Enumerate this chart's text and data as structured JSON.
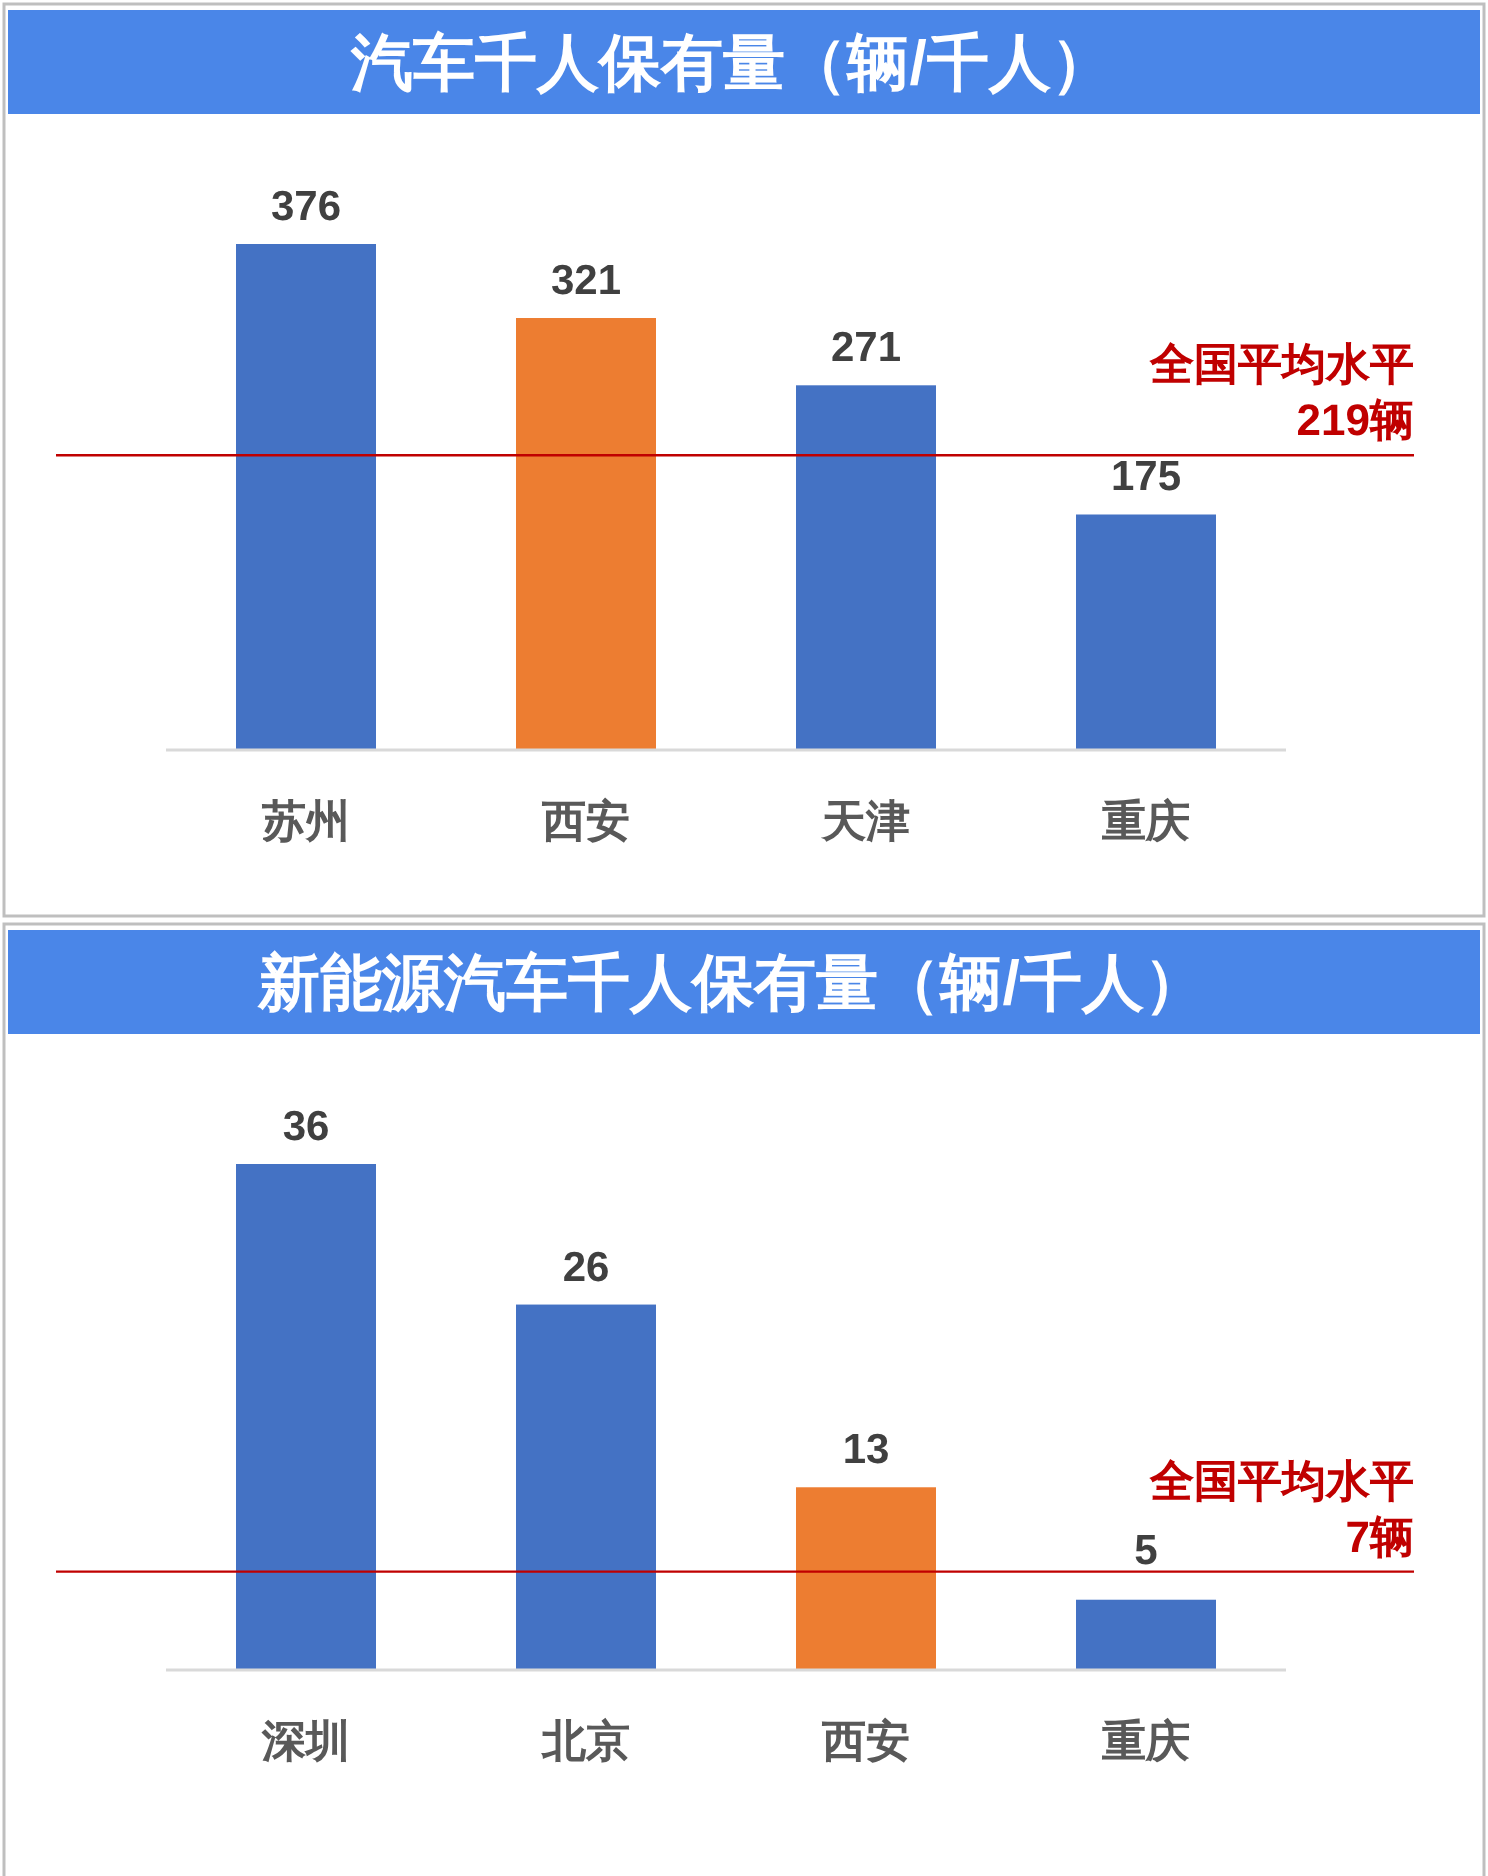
{
  "chart_data": [
    {
      "type": "bar",
      "title": "汽车千人保有量（辆/千人）",
      "categories": [
        "苏州",
        "西安",
        "天津",
        "重庆"
      ],
      "values": [
        376,
        321,
        271,
        175
      ],
      "colors": [
        "#4472c4",
        "#ed7d31",
        "#4472c4",
        "#4472c4"
      ],
      "data_labels": true,
      "ref_lines": [
        {
          "axis": "y",
          "value": 219,
          "label": "全国平均水平\n219辆",
          "color": "#c00000"
        }
      ]
    },
    {
      "type": "bar",
      "title": "新能源汽车千人保有量（辆/千人）",
      "categories": [
        "深圳",
        "北京",
        "西安",
        "重庆"
      ],
      "values": [
        36,
        26,
        13,
        5
      ],
      "colors": [
        "#4472c4",
        "#4472c4",
        "#ed7d31",
        "#4472c4"
      ],
      "data_labels": true,
      "ref_lines": [
        {
          "axis": "y",
          "value": 7,
          "label": "全国平均水平\n7辆",
          "color": "#c00000"
        }
      ]
    }
  ]
}
